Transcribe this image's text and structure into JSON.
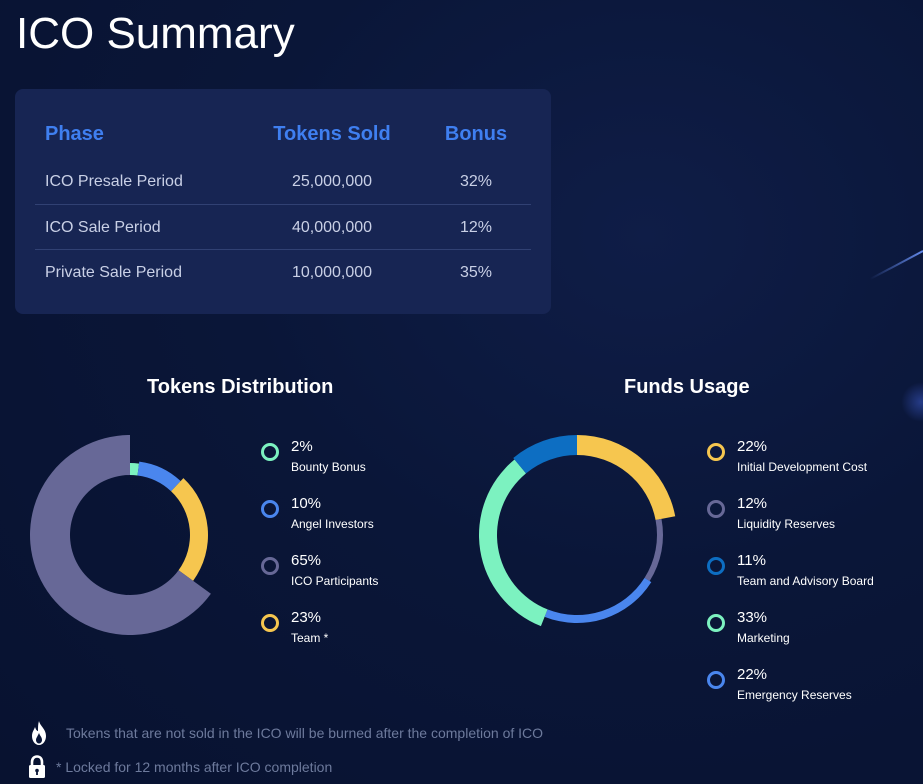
{
  "page": {
    "title": "ICO Summary"
  },
  "table": {
    "headers": {
      "phase": "Phase",
      "tokens": "Tokens Sold",
      "bonus": "Bonus"
    },
    "rows": [
      {
        "phase": "ICO Presale Period",
        "tokens": "25,000,000",
        "bonus": "32%"
      },
      {
        "phase": "ICO Sale Period",
        "tokens": "40,000,000",
        "bonus": "12%"
      },
      {
        "phase": "Private Sale Period",
        "tokens": "10,000,000",
        "bonus": "35%"
      }
    ]
  },
  "tokens_distribution": {
    "title": "Tokens Distribution",
    "items": [
      {
        "pct": "2%",
        "label": "Bounty Bonus",
        "value": 2,
        "color": "#7cf2c0"
      },
      {
        "pct": "10%",
        "label": "Angel Investors",
        "value": 10,
        "color": "#4a86ee"
      },
      {
        "pct": "65%",
        "label": "ICO Participants",
        "value": 65,
        "color": "#676897"
      },
      {
        "pct": "23%",
        "label": "Team *",
        "value": 23,
        "color": "#f6c64f"
      }
    ]
  },
  "funds_usage": {
    "title": "Funds Usage",
    "items": [
      {
        "pct": "22%",
        "label": "Initial Development Cost",
        "value": 22,
        "color": "#f6c64f"
      },
      {
        "pct": "12%",
        "label": "Liquidity Reserves",
        "value": 12,
        "color": "#676897"
      },
      {
        "pct": "11%",
        "label": "Team and Advisory Board",
        "value": 11,
        "color": "#0d6ec2"
      },
      {
        "pct": "33%",
        "label": "Marketing",
        "value": 33,
        "color": "#7cf2c0"
      },
      {
        "pct": "22%",
        "label": "Emergency Reserves",
        "value": 22,
        "color": "#4a86ee"
      }
    ],
    "draw_order": [
      0,
      1,
      4,
      3,
      2
    ]
  },
  "notes": {
    "burn": "Tokens that are not sold in the ICO will be burned after the completion of ICO",
    "lock": "* Locked for 12 months after ICO completion"
  },
  "icons": {
    "burn": "fire-icon",
    "lock": "lock-icon"
  }
}
